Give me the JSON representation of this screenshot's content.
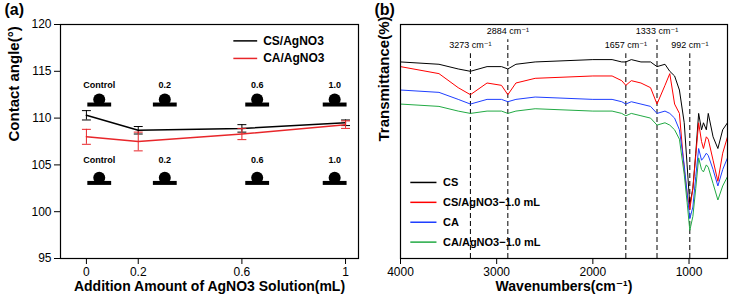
{
  "chart_data": [
    {
      "type": "line",
      "title": "(a)",
      "x_label": "Addition Amount of AgNO3 Solution(mL)",
      "y_label": "Contact angle(°)",
      "x": [
        0,
        0.2,
        0.6,
        1
      ],
      "series": [
        {
          "name": "CS/AgNO3",
          "color": "#000000",
          "values": [
            110.3,
            108.7,
            108.9,
            109.5
          ],
          "errors": [
            0.5,
            0.4,
            0.4,
            0.3
          ]
        },
        {
          "name": "CA/AgNO3",
          "color": "#e8262a",
          "values": [
            108.0,
            107.5,
            108.3,
            109.3
          ],
          "errors": [
            0.8,
            1.0,
            0.6,
            0.4
          ]
        }
      ],
      "xlim": [
        -0.1,
        1.05
      ],
      "xticks": [
        0,
        0.2,
        0.6,
        1
      ],
      "ylim": [
        95,
        120
      ],
      "yticks": [
        95,
        100,
        105,
        110,
        115,
        120
      ],
      "legend": "top-right",
      "insets": [
        {
          "series": "CS/AgNO3",
          "labels": [
            "Control",
            "0.2",
            "0.6",
            "1.0"
          ]
        },
        {
          "series": "CA/AgNO3",
          "labels": [
            "Control",
            "0.2",
            "0.6",
            "1.0"
          ]
        }
      ]
    },
    {
      "type": "line",
      "title": "(b)",
      "x_label": "Wavenumbers(cm⁻¹)",
      "y_label": "Transmittance(%)",
      "x": [
        4000,
        3600,
        3400,
        3273,
        3100,
        2950,
        2884,
        2800,
        2600,
        2000,
        1800,
        1700,
        1657,
        1600,
        1500,
        1400,
        1333,
        1250,
        1200,
        1150,
        1100,
        1050,
        1020,
        992,
        960,
        930,
        900,
        870,
        850,
        820,
        800,
        750,
        700,
        650,
        600
      ],
      "series": [
        {
          "name": "CS",
          "color": "#000000",
          "values": [
            84,
            83,
            81,
            80,
            82,
            82,
            81,
            83,
            84,
            85,
            85,
            84,
            84,
            85,
            84,
            84,
            82,
            83,
            80,
            78,
            72,
            58,
            40,
            23,
            30,
            45,
            62,
            55,
            58,
            55,
            62,
            52,
            47,
            55,
            58
          ]
        },
        {
          "name": "CS/AgNO3−1.0 mL",
          "color": "#ff0000",
          "values": [
            82,
            79,
            73,
            70,
            75,
            74,
            70,
            75,
            77,
            78,
            78,
            76,
            74,
            76,
            75,
            73,
            66,
            74,
            79,
            66,
            62,
            38,
            28,
            21,
            30,
            44,
            58,
            50,
            47,
            52,
            51,
            42,
            33,
            45,
            52
          ]
        },
        {
          "name": "CA",
          "color": "#1f3fff",
          "values": [
            72,
            71,
            68,
            66,
            68,
            68,
            67,
            68,
            69,
            68,
            68,
            67,
            66,
            67,
            66,
            65,
            62,
            63,
            62,
            60,
            55,
            40,
            28,
            17,
            22,
            35,
            47,
            42,
            43,
            45,
            44,
            38,
            31,
            38,
            43
          ]
        },
        {
          "name": "CA/AgNO3−1.0 mL",
          "color": "#22aa44",
          "values": [
            66,
            65,
            63,
            62,
            63,
            63,
            62,
            63,
            64,
            63,
            63,
            62,
            61,
            62,
            61,
            60,
            57,
            58,
            57,
            55,
            51,
            36,
            24,
            12,
            18,
            30,
            43,
            38,
            37,
            40,
            39,
            32,
            25,
            31,
            35
          ]
        }
      ],
      "xlim": [
        4000,
        600
      ],
      "xticks": [
        4000,
        3000,
        2000,
        1000
      ],
      "ylim": [
        0,
        100
      ],
      "tick_labels": "x",
      "legend": "bottom-left",
      "reference_lines": [
        {
          "value": 3273,
          "label": "3273 cm⁻¹",
          "line_style": "dashed"
        },
        {
          "value": 2884,
          "label": "2884 cm⁻¹",
          "line_style": "dashed"
        },
        {
          "value": 1657,
          "label": "1657 cm⁻¹",
          "line_style": "dashed"
        },
        {
          "value": 1333,
          "label": "1333 cm⁻¹",
          "line_style": "dashed"
        },
        {
          "value": 992,
          "label": "992 cm⁻¹",
          "line_style": "dashed"
        }
      ]
    }
  ]
}
